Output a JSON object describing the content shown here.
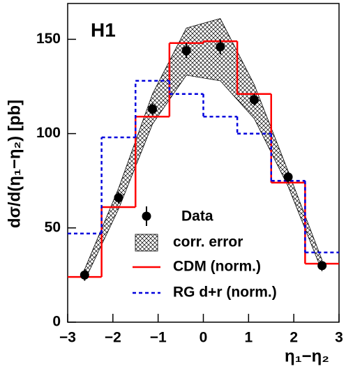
{
  "chart_data": {
    "type": "step",
    "label": "H1",
    "xlabel": "η₁−η₂",
    "ylabel": "dσ/d(η₁−η₂) [pb]",
    "bins": [
      -3,
      -2.25,
      -1.5,
      -0.75,
      0,
      0.75,
      1.5,
      2.25,
      3
    ],
    "x": [
      -2.625,
      -1.875,
      -1.125,
      -0.375,
      0.375,
      1.125,
      1.875,
      2.625
    ],
    "xlim": [
      -3,
      3
    ],
    "ylim": [
      0,
      169
    ],
    "xticks": [
      {
        "value": -3,
        "label": "−3"
      },
      {
        "value": -2,
        "label": "−2"
      },
      {
        "value": -1,
        "label": "−1"
      },
      0,
      1,
      2,
      3
    ],
    "yticks": [
      0,
      50,
      100,
      150
    ],
    "data": {
      "name": "Data",
      "color": "#000000",
      "values": [
        25,
        66,
        113,
        144,
        146,
        118,
        77,
        30
      ],
      "errors": [
        3,
        3,
        3,
        4,
        4,
        3,
        3,
        2
      ]
    },
    "band": {
      "name": "corr. error",
      "color": "#000000",
      "upper": [
        28,
        71,
        121,
        156,
        161,
        126,
        80,
        33
      ],
      "lower": [
        22,
        60,
        105,
        131,
        128,
        108,
        72,
        27
      ]
    },
    "series": [
      {
        "name": "CDM (norm.)",
        "color": "#ff0000",
        "dash": false,
        "values": [
          24,
          61,
          109,
          148,
          149,
          121,
          74,
          31
        ]
      },
      {
        "name": "RG d+r (norm.)",
        "color": "#0000dd",
        "dash": true,
        "values": [
          47,
          98,
          128,
          121,
          109,
          100,
          75,
          37
        ]
      }
    ]
  }
}
